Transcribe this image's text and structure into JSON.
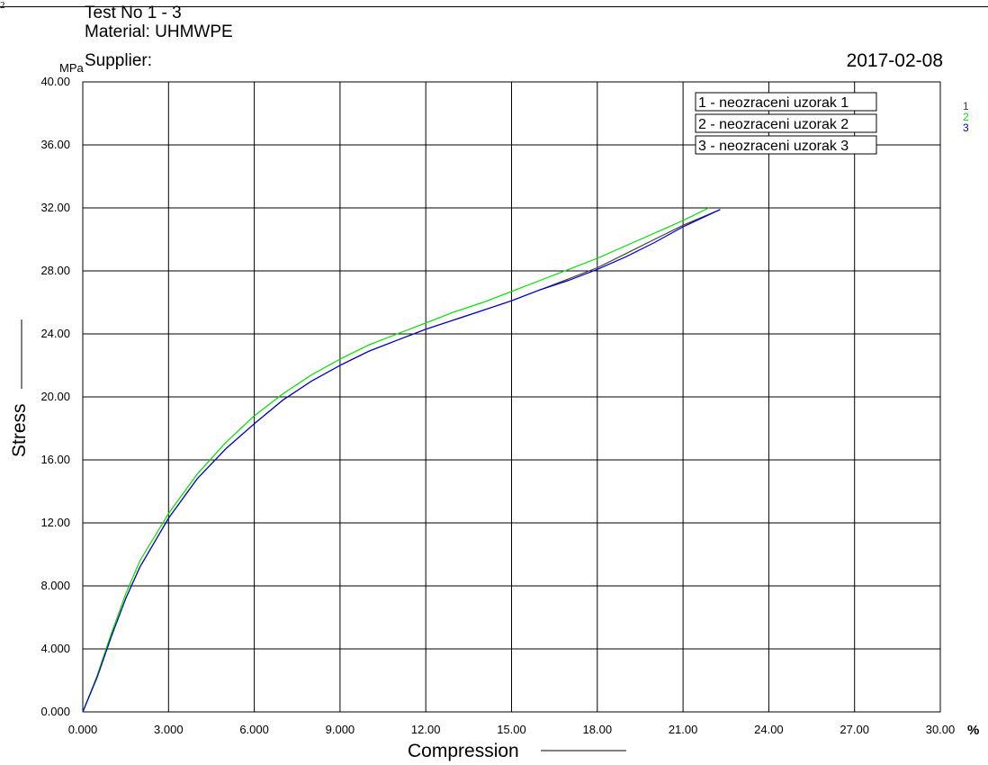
{
  "header": {
    "page_marker": "2",
    "test_no": "Test No  1 - 3",
    "material": "Material: UHMWPE",
    "supplier": "Supplier:",
    "date": "2017-02-08"
  },
  "chart_data": {
    "type": "line",
    "xlabel": "Compression",
    "ylabel": "Stress",
    "x_unit": "%",
    "y_unit": "MPa",
    "xlim": [
      0,
      30
    ],
    "ylim": [
      0,
      40
    ],
    "x_ticks": [
      "0.000",
      "3.000",
      "6.000",
      "9.000",
      "12.00",
      "15.00",
      "18.00",
      "21.00",
      "24.00",
      "27.00",
      "30.00"
    ],
    "y_ticks": [
      "0.000",
      "4.000",
      "8.000",
      "12.00",
      "16.00",
      "20.00",
      "24.00",
      "28.00",
      "32.00",
      "36.00",
      "40.00"
    ],
    "grid": true,
    "legend_position": "top-right",
    "legend": [
      "1 - neozraceni uzorak 1",
      "2 - neozraceni uzorak 2",
      "3 - neozraceni uzorak 3"
    ],
    "series_markers": [
      "1",
      "2",
      "3"
    ],
    "series": [
      {
        "name": "1 - neozraceni uzorak 1",
        "color": "#404040",
        "points": [
          [
            0,
            0
          ],
          [
            0.5,
            2.2
          ],
          [
            1,
            4.8
          ],
          [
            1.5,
            7.2
          ],
          [
            2,
            9.2
          ],
          [
            3,
            12.3
          ],
          [
            4,
            14.8
          ],
          [
            5,
            16.7
          ],
          [
            6,
            18.3
          ],
          [
            7,
            19.8
          ],
          [
            8,
            21
          ],
          [
            9,
            22
          ],
          [
            10,
            22.9
          ],
          [
            11,
            23.6
          ],
          [
            12,
            24.3
          ],
          [
            13,
            24.9
          ],
          [
            14,
            25.5
          ],
          [
            15,
            26.1
          ],
          [
            16,
            26.8
          ],
          [
            17,
            27.5
          ],
          [
            18,
            28.2
          ],
          [
            19,
            29.1
          ],
          [
            20,
            30
          ],
          [
            21,
            30.9
          ],
          [
            22.3,
            31.9
          ]
        ]
      },
      {
        "name": "2 - neozraceni uzorak 2",
        "color": "#00e000",
        "points": [
          [
            0,
            0
          ],
          [
            0.5,
            2.3
          ],
          [
            1,
            5.0
          ],
          [
            1.5,
            7.5
          ],
          [
            2,
            9.6
          ],
          [
            3,
            12.6
          ],
          [
            4,
            15.1
          ],
          [
            5,
            17.1
          ],
          [
            6,
            18.8
          ],
          [
            7,
            20.2
          ],
          [
            8,
            21.4
          ],
          [
            9,
            22.4
          ],
          [
            10,
            23.3
          ],
          [
            11,
            24
          ],
          [
            12,
            24.7
          ],
          [
            13,
            25.4
          ],
          [
            14,
            26
          ],
          [
            15,
            26.7
          ],
          [
            16,
            27.4
          ],
          [
            17,
            28.1
          ],
          [
            18,
            28.8
          ],
          [
            19,
            29.6
          ],
          [
            20,
            30.4
          ],
          [
            21,
            31.2
          ],
          [
            21.9,
            32
          ]
        ]
      },
      {
        "name": "3 - neozraceni uzorak 3",
        "color": "#0000cc",
        "points": [
          [
            0,
            0
          ],
          [
            0.5,
            2.2
          ],
          [
            1,
            4.8
          ],
          [
            1.5,
            7.2
          ],
          [
            2,
            9.2
          ],
          [
            3,
            12.3
          ],
          [
            4,
            14.8
          ],
          [
            5,
            16.7
          ],
          [
            6,
            18.3
          ],
          [
            7,
            19.8
          ],
          [
            8,
            21
          ],
          [
            9,
            22
          ],
          [
            10,
            22.9
          ],
          [
            11,
            23.6
          ],
          [
            12,
            24.3
          ],
          [
            13,
            24.9
          ],
          [
            14,
            25.5
          ],
          [
            15,
            26.1
          ],
          [
            16,
            26.8
          ],
          [
            17,
            27.4
          ],
          [
            18,
            28.1
          ],
          [
            19,
            28.9
          ],
          [
            20,
            29.8
          ],
          [
            21,
            30.8
          ],
          [
            22.3,
            31.9
          ]
        ]
      }
    ]
  }
}
